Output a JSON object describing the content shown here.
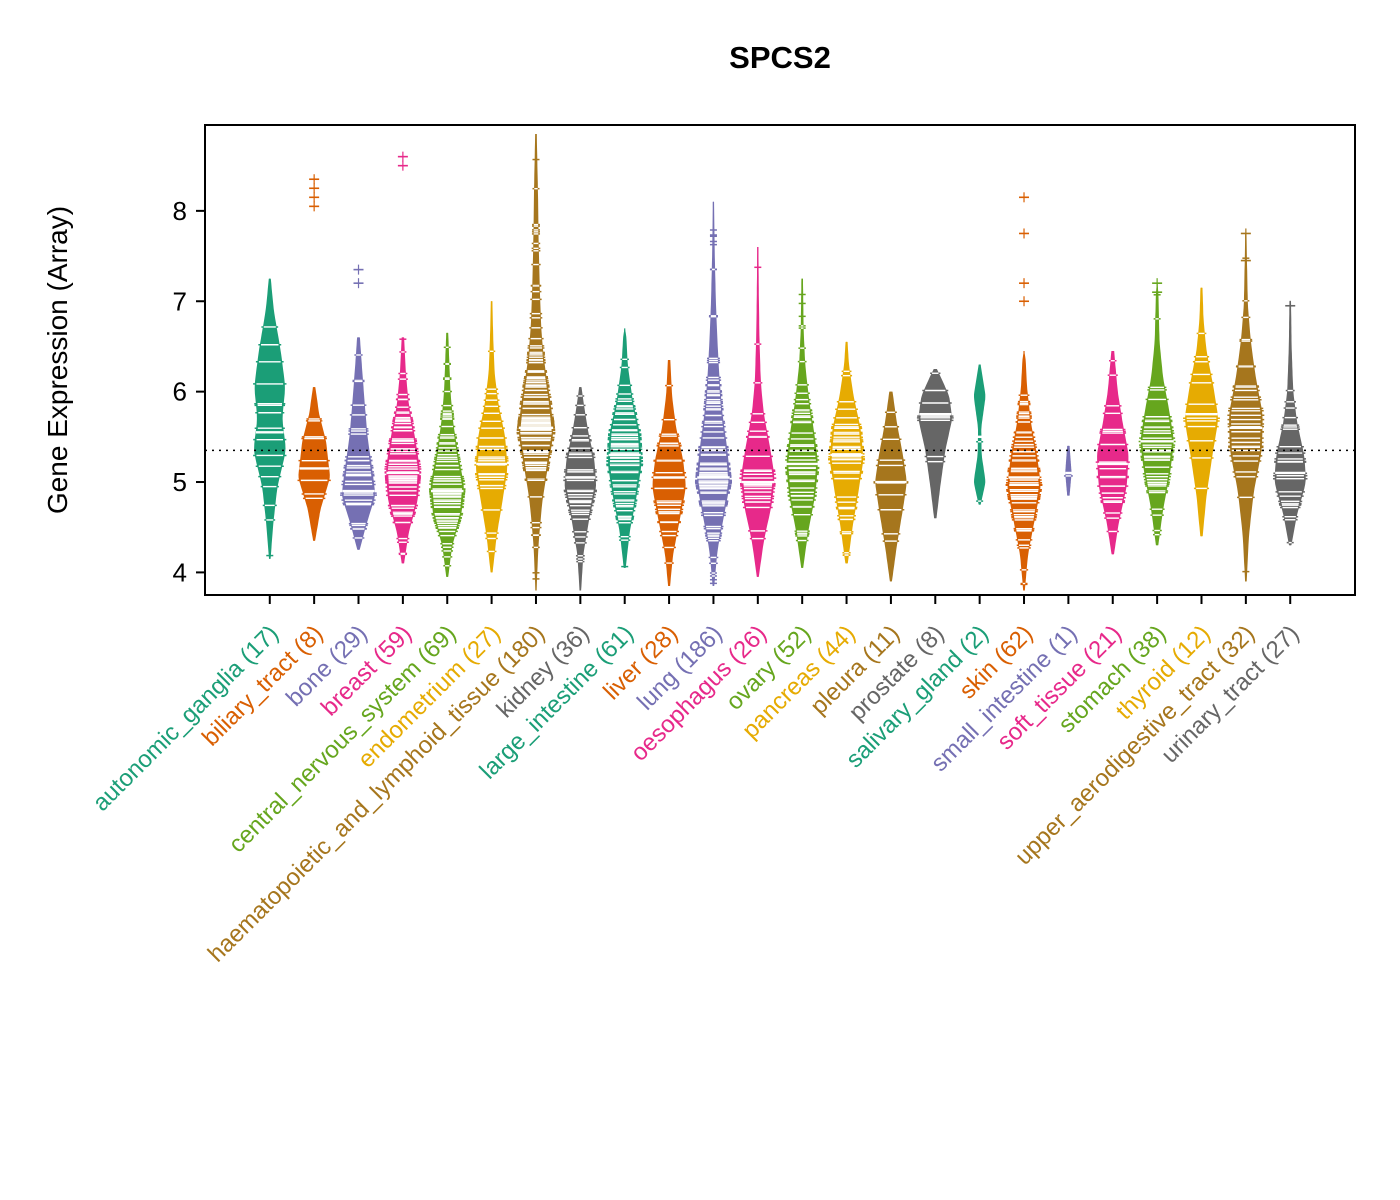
{
  "chart_data": {
    "type": "violin",
    "title": "SPCS2",
    "ylabel": "Gene Expression (Array)",
    "ylim": [
      3.75,
      8.95
    ],
    "yticks": [
      4,
      5,
      6,
      7,
      8
    ],
    "reference_line_y": 5.35,
    "grid": false,
    "legend": "none",
    "palette": [
      "#1B9E77",
      "#D95F02",
      "#7570B3",
      "#E7298A",
      "#66A61E",
      "#E6AB02",
      "#A6761D",
      "#666666"
    ],
    "groups": [
      {
        "name": "autonomic_ganglia",
        "display": "autonomic_ganglia (17)",
        "n": 17,
        "color": "#1B9E77",
        "median": 5.55,
        "body": [
          [
            4.15,
            0.04
          ],
          [
            4.55,
            0.18
          ],
          [
            4.95,
            0.38
          ],
          [
            5.35,
            0.82
          ],
          [
            5.7,
            0.62
          ],
          [
            6.05,
            0.78
          ],
          [
            6.45,
            0.55
          ],
          [
            6.9,
            0.2
          ],
          [
            7.25,
            0.05
          ]
        ],
        "outliers": []
      },
      {
        "name": "biliary_tract",
        "display": "biliary_tract (8)",
        "n": 8,
        "color": "#D95F02",
        "median": 5.15,
        "body": [
          [
            4.35,
            0.05
          ],
          [
            4.7,
            0.32
          ],
          [
            5.05,
            0.8
          ],
          [
            5.45,
            0.6
          ],
          [
            5.75,
            0.25
          ],
          [
            6.05,
            0.06
          ]
        ],
        "outliers": [
          8.05,
          8.15,
          8.25,
          8.35
        ]
      },
      {
        "name": "bone",
        "display": "bone (29)",
        "n": 29,
        "color": "#7570B3",
        "median": 4.9,
        "body": [
          [
            4.25,
            0.06
          ],
          [
            4.55,
            0.42
          ],
          [
            4.85,
            0.85
          ],
          [
            5.15,
            0.68
          ],
          [
            5.5,
            0.45
          ],
          [
            5.9,
            0.3
          ],
          [
            6.25,
            0.18
          ],
          [
            6.6,
            0.07
          ]
        ],
        "outliers": [
          7.2,
          7.35
        ]
      },
      {
        "name": "breast",
        "display": "breast (59)",
        "n": 59,
        "color": "#E7298A",
        "median": 5.1,
        "body": [
          [
            4.1,
            0.06
          ],
          [
            4.45,
            0.3
          ],
          [
            4.8,
            0.75
          ],
          [
            5.15,
            0.85
          ],
          [
            5.5,
            0.6
          ],
          [
            5.85,
            0.3
          ],
          [
            6.2,
            0.15
          ],
          [
            6.6,
            0.06
          ]
        ],
        "outliers": [
          8.5,
          8.6
        ]
      },
      {
        "name": "central_nervous_system",
        "display": "central_nervous_system (69)",
        "n": 69,
        "color": "#66A61E",
        "median": 4.9,
        "body": [
          [
            3.95,
            0.05
          ],
          [
            4.3,
            0.25
          ],
          [
            4.65,
            0.72
          ],
          [
            4.95,
            0.85
          ],
          [
            5.3,
            0.55
          ],
          [
            5.65,
            0.3
          ],
          [
            6.0,
            0.16
          ],
          [
            6.35,
            0.1
          ],
          [
            6.65,
            0.05
          ]
        ],
        "outliers": []
      },
      {
        "name": "endometrium",
        "display": "endometrium (27)",
        "n": 27,
        "color": "#E6AB02",
        "median": 5.2,
        "body": [
          [
            4.0,
            0.05
          ],
          [
            4.4,
            0.25
          ],
          [
            4.8,
            0.55
          ],
          [
            5.15,
            0.8
          ],
          [
            5.5,
            0.68
          ],
          [
            5.85,
            0.35
          ],
          [
            6.2,
            0.15
          ],
          [
            6.6,
            0.08
          ],
          [
            7.0,
            0.04
          ]
        ],
        "outliers": []
      },
      {
        "name": "haematopoietic_and_lymphoid_tissue",
        "display": "haematopoietic_and_lymphoid_tissue (180)",
        "n": 180,
        "color": "#A6761D",
        "median": 5.6,
        "body": [
          [
            3.8,
            0.03
          ],
          [
            4.3,
            0.12
          ],
          [
            4.8,
            0.32
          ],
          [
            5.2,
            0.62
          ],
          [
            5.55,
            0.9
          ],
          [
            5.9,
            0.72
          ],
          [
            6.3,
            0.42
          ],
          [
            6.7,
            0.26
          ],
          [
            7.2,
            0.18
          ],
          [
            7.7,
            0.13
          ],
          [
            8.2,
            0.1
          ],
          [
            8.85,
            0.04
          ]
        ],
        "outliers": []
      },
      {
        "name": "kidney",
        "display": "kidney (36)",
        "n": 36,
        "color": "#666666",
        "median": 5.05,
        "body": [
          [
            3.8,
            0.04
          ],
          [
            4.2,
            0.15
          ],
          [
            4.6,
            0.45
          ],
          [
            4.95,
            0.8
          ],
          [
            5.25,
            0.7
          ],
          [
            5.55,
            0.4
          ],
          [
            5.85,
            0.18
          ],
          [
            6.05,
            0.06
          ]
        ],
        "outliers": []
      },
      {
        "name": "large_intestine",
        "display": "large_intestine (61)",
        "n": 61,
        "color": "#1B9E77",
        "median": 5.3,
        "body": [
          [
            4.05,
            0.05
          ],
          [
            4.45,
            0.25
          ],
          [
            4.85,
            0.6
          ],
          [
            5.2,
            0.85
          ],
          [
            5.55,
            0.75
          ],
          [
            5.9,
            0.4
          ],
          [
            6.3,
            0.15
          ],
          [
            6.7,
            0.06
          ]
        ],
        "outliers": []
      },
      {
        "name": "liver",
        "display": "liver (28)",
        "n": 28,
        "color": "#D95F02",
        "median": 5.05,
        "body": [
          [
            3.85,
            0.05
          ],
          [
            4.2,
            0.2
          ],
          [
            4.6,
            0.55
          ],
          [
            4.95,
            0.85
          ],
          [
            5.25,
            0.7
          ],
          [
            5.6,
            0.35
          ],
          [
            5.95,
            0.15
          ],
          [
            6.35,
            0.06
          ]
        ],
        "outliers": []
      },
      {
        "name": "lung",
        "display": "lung (186)",
        "n": 186,
        "color": "#7570B3",
        "median": 5.05,
        "body": [
          [
            3.85,
            0.04
          ],
          [
            4.25,
            0.2
          ],
          [
            4.65,
            0.55
          ],
          [
            5.0,
            0.85
          ],
          [
            5.35,
            0.7
          ],
          [
            5.75,
            0.45
          ],
          [
            6.15,
            0.3
          ],
          [
            6.55,
            0.2
          ],
          [
            6.95,
            0.13
          ],
          [
            7.35,
            0.08
          ],
          [
            7.75,
            0.05
          ],
          [
            8.1,
            0.03
          ]
        ],
        "outliers": []
      },
      {
        "name": "oesophagus",
        "display": "oesophagus (26)",
        "n": 26,
        "color": "#E7298A",
        "median": 5.0,
        "body": [
          [
            3.95,
            0.05
          ],
          [
            4.35,
            0.3
          ],
          [
            4.75,
            0.7
          ],
          [
            5.05,
            0.85
          ],
          [
            5.4,
            0.6
          ],
          [
            5.75,
            0.3
          ],
          [
            6.1,
            0.15
          ],
          [
            6.6,
            0.08
          ],
          [
            7.1,
            0.05
          ],
          [
            7.6,
            0.03
          ]
        ],
        "outliers": []
      },
      {
        "name": "ovary",
        "display": "ovary (52)",
        "n": 52,
        "color": "#66A61E",
        "median": 5.2,
        "body": [
          [
            4.05,
            0.05
          ],
          [
            4.45,
            0.3
          ],
          [
            4.85,
            0.65
          ],
          [
            5.2,
            0.8
          ],
          [
            5.55,
            0.6
          ],
          [
            5.9,
            0.35
          ],
          [
            6.3,
            0.15
          ],
          [
            6.7,
            0.07
          ],
          [
            7.25,
            0.04
          ]
        ],
        "outliers": []
      },
      {
        "name": "pancreas",
        "display": "pancreas (44)",
        "n": 44,
        "color": "#E6AB02",
        "median": 5.3,
        "body": [
          [
            4.1,
            0.06
          ],
          [
            4.5,
            0.3
          ],
          [
            4.9,
            0.6
          ],
          [
            5.25,
            0.85
          ],
          [
            5.6,
            0.7
          ],
          [
            5.95,
            0.35
          ],
          [
            6.3,
            0.12
          ],
          [
            6.55,
            0.05
          ]
        ],
        "outliers": []
      },
      {
        "name": "pleura",
        "display": "pleura (11)",
        "n": 11,
        "color": "#A6761D",
        "median": 5.0,
        "body": [
          [
            3.9,
            0.05
          ],
          [
            4.3,
            0.3
          ],
          [
            4.7,
            0.6
          ],
          [
            5.0,
            0.8
          ],
          [
            5.3,
            0.6
          ],
          [
            5.65,
            0.3
          ],
          [
            6.0,
            0.08
          ]
        ],
        "outliers": []
      },
      {
        "name": "prostate",
        "display": "prostate (8)",
        "n": 8,
        "color": "#666666",
        "median": 5.75,
        "body": [
          [
            4.6,
            0.06
          ],
          [
            4.95,
            0.25
          ],
          [
            5.35,
            0.5
          ],
          [
            5.7,
            0.85
          ],
          [
            5.95,
            0.7
          ],
          [
            6.15,
            0.3
          ],
          [
            6.25,
            0.08
          ]
        ],
        "outliers": []
      },
      {
        "name": "salivary_gland",
        "display": "salivary_gland (2)",
        "n": 2,
        "color": "#1B9E77",
        "median": 5.5,
        "body": [
          [
            4.75,
            0.05
          ],
          [
            5.0,
            0.3
          ],
          [
            5.3,
            0.1
          ],
          [
            5.6,
            0.08
          ],
          [
            5.95,
            0.3
          ],
          [
            6.3,
            0.05
          ]
        ],
        "outliers": []
      },
      {
        "name": "skin",
        "display": "skin (62)",
        "n": 62,
        "color": "#D95F02",
        "median": 5.05,
        "body": [
          [
            3.8,
            0.04
          ],
          [
            4.2,
            0.2
          ],
          [
            4.6,
            0.55
          ],
          [
            4.95,
            0.85
          ],
          [
            5.3,
            0.65
          ],
          [
            5.65,
            0.35
          ],
          [
            6.05,
            0.15
          ],
          [
            6.45,
            0.06
          ]
        ],
        "outliers": [
          7.0,
          7.2,
          7.75,
          8.15
        ]
      },
      {
        "name": "small_intestine",
        "display": "small_intestine (1)",
        "n": 1,
        "color": "#7570B3",
        "median": 5.1,
        "body": [
          [
            4.85,
            0.06
          ],
          [
            5.1,
            0.16
          ],
          [
            5.4,
            0.06
          ]
        ],
        "outliers": []
      },
      {
        "name": "soft_tissue",
        "display": "soft_tissue (21)",
        "n": 21,
        "color": "#E7298A",
        "median": 5.2,
        "body": [
          [
            4.2,
            0.06
          ],
          [
            4.55,
            0.3
          ],
          [
            4.95,
            0.7
          ],
          [
            5.3,
            0.8
          ],
          [
            5.65,
            0.5
          ],
          [
            6.0,
            0.25
          ],
          [
            6.45,
            0.07
          ]
        ],
        "outliers": []
      },
      {
        "name": "stomach",
        "display": "stomach (38)",
        "n": 38,
        "color": "#66A61E",
        "median": 5.45,
        "body": [
          [
            4.3,
            0.06
          ],
          [
            4.7,
            0.3
          ],
          [
            5.1,
            0.65
          ],
          [
            5.45,
            0.85
          ],
          [
            5.8,
            0.6
          ],
          [
            6.15,
            0.3
          ],
          [
            6.55,
            0.12
          ],
          [
            7.2,
            0.05
          ]
        ],
        "outliers": [
          7.1,
          7.2
        ]
      },
      {
        "name": "thyroid",
        "display": "thyroid (12)",
        "n": 12,
        "color": "#E6AB02",
        "median": 5.75,
        "body": [
          [
            4.4,
            0.06
          ],
          [
            4.85,
            0.25
          ],
          [
            5.3,
            0.55
          ],
          [
            5.7,
            0.85
          ],
          [
            6.05,
            0.6
          ],
          [
            6.45,
            0.25
          ],
          [
            6.8,
            0.1
          ],
          [
            7.15,
            0.05
          ]
        ],
        "outliers": []
      },
      {
        "name": "upper_aerodigestive_tract",
        "display": "upper_aerodigestive_tract (32)",
        "n": 32,
        "color": "#A6761D",
        "median": 5.6,
        "body": [
          [
            3.9,
            0.04
          ],
          [
            4.4,
            0.15
          ],
          [
            4.9,
            0.4
          ],
          [
            5.35,
            0.8
          ],
          [
            5.75,
            0.85
          ],
          [
            6.15,
            0.5
          ],
          [
            6.55,
            0.25
          ],
          [
            6.95,
            0.1
          ],
          [
            7.4,
            0.06
          ],
          [
            7.75,
            0.03
          ]
        ],
        "outliers": [
          7.45,
          7.75
        ]
      },
      {
        "name": "urinary_tract",
        "display": "urinary_tract (27)",
        "n": 27,
        "color": "#666666",
        "median": 5.1,
        "body": [
          [
            4.3,
            0.06
          ],
          [
            4.65,
            0.35
          ],
          [
            5.0,
            0.8
          ],
          [
            5.3,
            0.7
          ],
          [
            5.65,
            0.35
          ],
          [
            6.0,
            0.15
          ],
          [
            6.5,
            0.07
          ],
          [
            7.0,
            0.04
          ]
        ],
        "outliers": [
          6.95
        ]
      }
    ]
  }
}
